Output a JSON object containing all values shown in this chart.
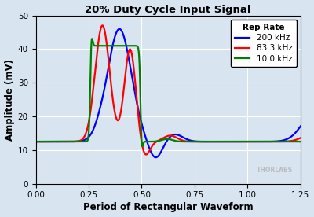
{
  "title": "20% Duty Cycle Input Signal",
  "xlabel": "Period of Rectangular Waveform",
  "ylabel": "Amplitude (mV)",
  "xlim": [
    0.0,
    1.25
  ],
  "ylim": [
    0,
    50
  ],
  "xticks": [
    0.0,
    0.25,
    0.5,
    0.75,
    1.0,
    1.25
  ],
  "yticks": [
    0,
    10,
    20,
    30,
    40,
    50
  ],
  "bg_color": "#d8e4f0",
  "legend_title": "Rep Rate",
  "series": [
    {
      "label": "200 kHz",
      "color": "#0000ff",
      "lw": 1.6
    },
    {
      "label": "83.3 kHz",
      "color": "#ff0000",
      "lw": 1.6
    },
    {
      "label": "10.0 kHz",
      "color": "#008000",
      "lw": 1.6
    }
  ],
  "watermark": "THORLABS"
}
